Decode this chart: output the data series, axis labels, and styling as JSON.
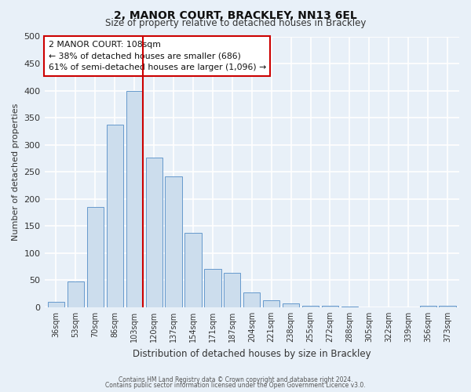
{
  "title": "2, MANOR COURT, BRACKLEY, NN13 6EL",
  "subtitle": "Size of property relative to detached houses in Brackley",
  "xlabel": "Distribution of detached houses by size in Brackley",
  "ylabel": "Number of detached properties",
  "categories": [
    "36sqm",
    "53sqm",
    "70sqm",
    "86sqm",
    "103sqm",
    "120sqm",
    "137sqm",
    "154sqm",
    "171sqm",
    "187sqm",
    "204sqm",
    "221sqm",
    "238sqm",
    "255sqm",
    "272sqm",
    "288sqm",
    "305sqm",
    "322sqm",
    "339sqm",
    "356sqm",
    "373sqm"
  ],
  "values": [
    10,
    47,
    185,
    337,
    400,
    277,
    242,
    137,
    70,
    63,
    27,
    13,
    7,
    3,
    2,
    1,
    0,
    0,
    0,
    2,
    3
  ],
  "bar_color": "#ccdded",
  "bar_edge_color": "#6699cc",
  "highlight_index": 4,
  "highlight_line_color": "#cc0000",
  "ylim": [
    0,
    500
  ],
  "yticks": [
    0,
    50,
    100,
    150,
    200,
    250,
    300,
    350,
    400,
    450,
    500
  ],
  "annotation_title": "2 MANOR COURT: 108sqm",
  "annotation_line1": "← 38% of detached houses are smaller (686)",
  "annotation_line2": "61% of semi-detached houses are larger (1,096) →",
  "annotation_box_color": "#ffffff",
  "annotation_box_edge": "#cc0000",
  "background_color": "#e8f0f8",
  "grid_color": "#ffffff",
  "footer1": "Contains HM Land Registry data © Crown copyright and database right 2024.",
  "footer2": "Contains public sector information licensed under the Open Government Licence v3.0."
}
